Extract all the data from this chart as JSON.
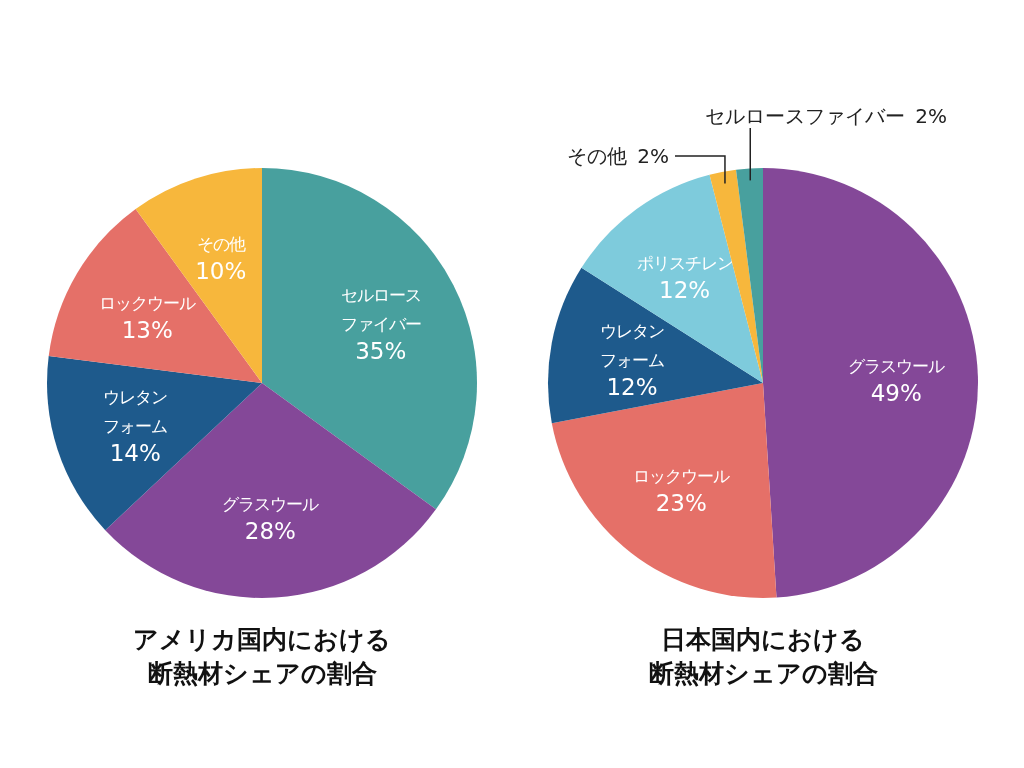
{
  "chart_data": [
    {
      "type": "pie",
      "title": "アメリカ国内における",
      "subtitle": "断熱材シェアの割合",
      "categories": [
        "セルロースファイバー",
        "グラスウール",
        "ウレタンフォーム",
        "ロックウール",
        "その他"
      ],
      "values": [
        35,
        28,
        14,
        13,
        10
      ],
      "colors": [
        "#48a09e",
        "#844898",
        "#1e5a8c",
        "#e57068",
        "#f7b73c"
      ],
      "value_labels": [
        "35%",
        "28%",
        "14%",
        "13%",
        "10%"
      ]
    },
    {
      "type": "pie",
      "title": "日本国内における",
      "subtitle": "断熱材シェアの割合",
      "categories": [
        "グラスウール",
        "ロックウール",
        "ウレタンフォーム",
        "ポリスチレン",
        "その他",
        "セルロースファイバー"
      ],
      "values": [
        49,
        23,
        12,
        12,
        2,
        2
      ],
      "colors": [
        "#844898",
        "#e57068",
        "#1e5a8c",
        "#7ecbdc",
        "#f7b73c",
        "#48a09e"
      ],
      "value_labels": [
        "49%",
        "23%",
        "12%",
        "12%",
        "2%",
        "2%"
      ]
    }
  ]
}
